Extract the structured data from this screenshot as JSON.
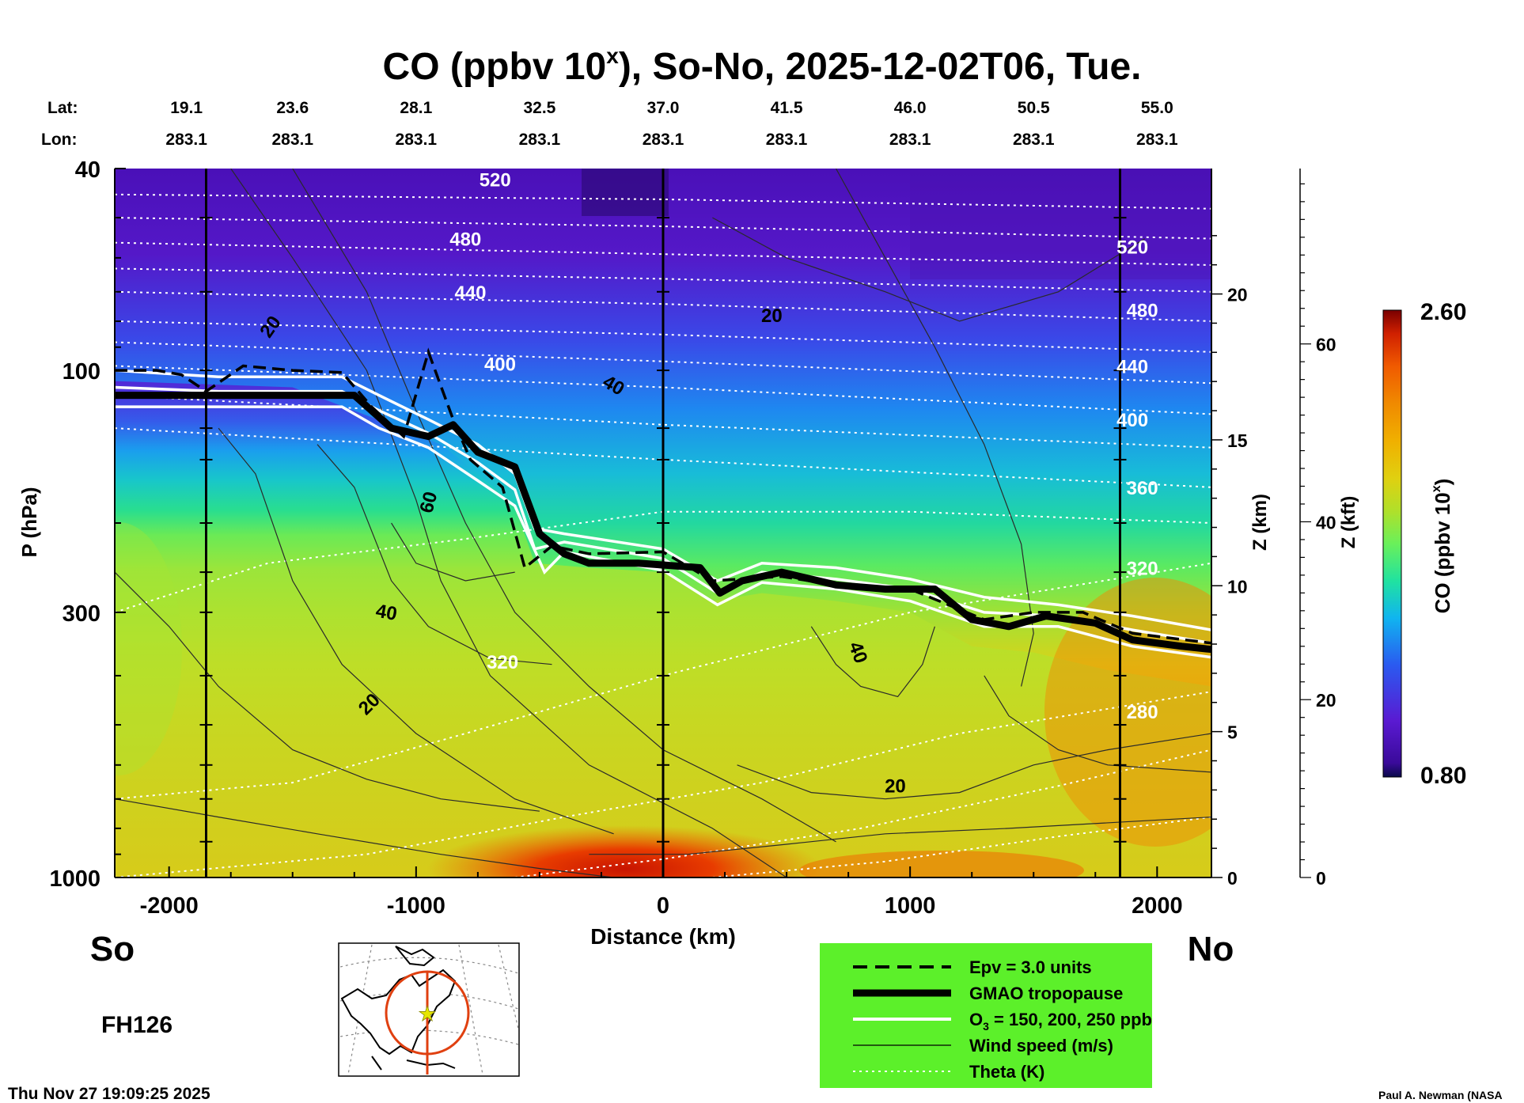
{
  "chart_data": {
    "type": "heatmap",
    "title": "CO (ppbv 10",
    "title_sup": "x",
    "title_rest": "), So-No, 2025-12-02T06, Tue.",
    "lat_label": "Lat:",
    "lon_label": "Lon:",
    "lat_values": [
      "19.1",
      "23.6",
      "28.1",
      "32.5",
      "37.0",
      "41.5",
      "46.0",
      "50.5",
      "55.0"
    ],
    "lon_values": [
      "283.1",
      "283.1",
      "283.1",
      "283.1",
      "283.1",
      "283.1",
      "283.1",
      "283.1",
      "283.1"
    ],
    "column_distances_km": [
      -2000,
      -1500,
      -1000,
      -500,
      0,
      500,
      1000,
      1500,
      2000
    ],
    "xlabel": "Distance (km)",
    "x_ticks": [
      -2000,
      -1000,
      0,
      1000,
      2000
    ],
    "xlim": [
      -2220,
      2220
    ],
    "ylabel": "P (hPa)",
    "y_ticks": [
      40,
      100,
      300,
      1000
    ],
    "ylim_hpa": [
      1000,
      40
    ],
    "z_km_label": "Z (km)",
    "z_km_ticks": [
      0,
      5,
      10,
      15,
      20
    ],
    "z_kft_label": "Z (kft)",
    "z_kft_ticks": [
      0,
      20,
      40,
      60
    ],
    "colorbar": {
      "label": "CO (ppbv 10",
      "label_sup": "x",
      "label_end": ")",
      "min": "0.80",
      "max": "2.60"
    },
    "left_label": "So",
    "right_label": "No",
    "forecast_hour": "FH126",
    "timestamp": "Thu Nov 27 19:09:25 2025",
    "credit": "Paul A. Newman (NASA",
    "vertical_marker_lines_km": [
      -1850,
      0,
      1850
    ],
    "theta_labels": [
      {
        "text": "520",
        "x_km": -680,
        "p": 42
      },
      {
        "text": "480",
        "x_km": -800,
        "p": 55
      },
      {
        "text": "440",
        "x_km": -780,
        "p": 70
      },
      {
        "text": "400",
        "x_km": -660,
        "p": 97
      },
      {
        "text": "320",
        "x_km": -650,
        "p": 375
      },
      {
        "text": "520",
        "x_km": 1900,
        "p": 57
      },
      {
        "text": "480",
        "x_km": 1940,
        "p": 76
      },
      {
        "text": "440",
        "x_km": 1900,
        "p": 98
      },
      {
        "text": "400",
        "x_km": 1900,
        "p": 125
      },
      {
        "text": "360",
        "x_km": 1940,
        "p": 170
      },
      {
        "text": "320",
        "x_km": 1940,
        "p": 245
      },
      {
        "text": "280",
        "x_km": 1940,
        "p": 470
      }
    ],
    "wind_labels": [
      {
        "text": "20",
        "x_km": -1590,
        "p": 82,
        "rot": -55
      },
      {
        "text": "20",
        "x_km": 440,
        "p": 78,
        "rot": 0
      },
      {
        "text": "40",
        "x_km": -200,
        "p": 107,
        "rot": 30
      },
      {
        "text": "60",
        "x_km": -950,
        "p": 182,
        "rot": -75
      },
      {
        "text": "40",
        "x_km": -1120,
        "p": 300,
        "rot": 10
      },
      {
        "text": "40",
        "x_km": 790,
        "p": 360,
        "rot": 70
      },
      {
        "text": "20",
        "x_km": -1190,
        "p": 455,
        "rot": -45
      },
      {
        "text": "20",
        "x_km": 940,
        "p": 660,
        "rot": 0
      }
    ],
    "tropopause_p": [
      [
        -2220,
        112
      ],
      [
        -2000,
        112
      ],
      [
        -1800,
        112
      ],
      [
        -1500,
        112
      ],
      [
        -1250,
        112
      ],
      [
        -1100,
        130
      ],
      [
        -950,
        135
      ],
      [
        -850,
        128
      ],
      [
        -750,
        145
      ],
      [
        -600,
        155
      ],
      [
        -500,
        210
      ],
      [
        -400,
        230
      ],
      [
        -300,
        240
      ],
      [
        -100,
        240
      ],
      [
        150,
        245
      ],
      [
        230,
        275
      ],
      [
        320,
        260
      ],
      [
        480,
        250
      ],
      [
        700,
        265
      ],
      [
        900,
        270
      ],
      [
        1100,
        270
      ],
      [
        1250,
        310
      ],
      [
        1400,
        320
      ],
      [
        1550,
        305
      ],
      [
        1750,
        315
      ],
      [
        1900,
        340
      ],
      [
        2100,
        350
      ],
      [
        2220,
        355
      ]
    ],
    "epv_p": [
      [
        -2220,
        100
      ],
      [
        -2050,
        100
      ],
      [
        -1950,
        102
      ],
      [
        -1850,
        110
      ],
      [
        -1700,
        98
      ],
      [
        -1500,
        100
      ],
      [
        -1300,
        101
      ],
      [
        -1180,
        118
      ],
      [
        -1050,
        135
      ],
      [
        -950,
        92
      ],
      [
        -850,
        125
      ],
      [
        -780,
        150
      ],
      [
        -650,
        170
      ],
      [
        -560,
        245
      ],
      [
        -450,
        222
      ],
      [
        -300,
        230
      ],
      [
        0,
        228
      ],
      [
        200,
        260
      ],
      [
        480,
        255
      ],
      [
        700,
        265
      ],
      [
        1000,
        270
      ],
      [
        1300,
        310
      ],
      [
        1500,
        300
      ],
      [
        1700,
        300
      ],
      [
        1900,
        330
      ],
      [
        2220,
        345
      ]
    ],
    "o3_lines": [
      [
        [
          -2220,
          100
        ],
        [
          -1800,
          103
        ],
        [
          -1300,
          103
        ],
        [
          -1150,
          112
        ],
        [
          -950,
          125
        ],
        [
          -750,
          140
        ],
        [
          -600,
          160
        ],
        [
          -520,
          205
        ],
        [
          -400,
          210
        ],
        [
          0,
          225
        ],
        [
          220,
          260
        ],
        [
          400,
          240
        ],
        [
          700,
          245
        ],
        [
          1000,
          258
        ],
        [
          1300,
          280
        ],
        [
          1600,
          290
        ],
        [
          1900,
          305
        ],
        [
          2220,
          325
        ]
      ],
      [
        [
          -2220,
          108
        ],
        [
          -1800,
          110
        ],
        [
          -1300,
          110
        ],
        [
          -1150,
          120
        ],
        [
          -950,
          133
        ],
        [
          -750,
          152
        ],
        [
          -600,
          172
        ],
        [
          -520,
          225
        ],
        [
          -400,
          218
        ],
        [
          0,
          235
        ],
        [
          220,
          275
        ],
        [
          400,
          250
        ],
        [
          700,
          258
        ],
        [
          1000,
          270
        ],
        [
          1300,
          300
        ],
        [
          1600,
          305
        ],
        [
          1900,
          325
        ],
        [
          2220,
          345
        ]
      ],
      [
        [
          -2220,
          118
        ],
        [
          -1800,
          118
        ],
        [
          -1300,
          118
        ],
        [
          -1150,
          130
        ],
        [
          -950,
          142
        ],
        [
          -750,
          165
        ],
        [
          -600,
          185
        ],
        [
          -480,
          250
        ],
        [
          -400,
          228
        ],
        [
          0,
          248
        ],
        [
          220,
          290
        ],
        [
          400,
          262
        ],
        [
          700,
          270
        ],
        [
          1000,
          285
        ],
        [
          1300,
          320
        ],
        [
          1600,
          320
        ],
        [
          1900,
          350
        ],
        [
          2220,
          368
        ]
      ]
    ],
    "legend": [
      {
        "style": "dashed",
        "label": "Epv = 3.0 units"
      },
      {
        "style": "thick",
        "label": "GMAO tropopause"
      },
      {
        "style": "white",
        "label": "O",
        "sub": "3",
        "label_rest": " = 150, 200, 250 ppb"
      },
      {
        "style": "thin",
        "label": "Wind speed (m/s)"
      },
      {
        "style": "dotted",
        "label": "Theta (K)"
      }
    ],
    "colors": {
      "colorbar_stops": [
        "#0a0a4a",
        "#3a0a9a",
        "#5a1ad2",
        "#2a5af0",
        "#10b4f0",
        "#20e2a0",
        "#6af05a",
        "#b0e02a",
        "#e0d010",
        "#f0b000",
        "#f08a00",
        "#f05a00",
        "#d02000",
        "#7a0000"
      ],
      "legend_bg": "#5cf02a",
      "map_circle": "#e04010",
      "map_star": "#e6e600"
    }
  }
}
